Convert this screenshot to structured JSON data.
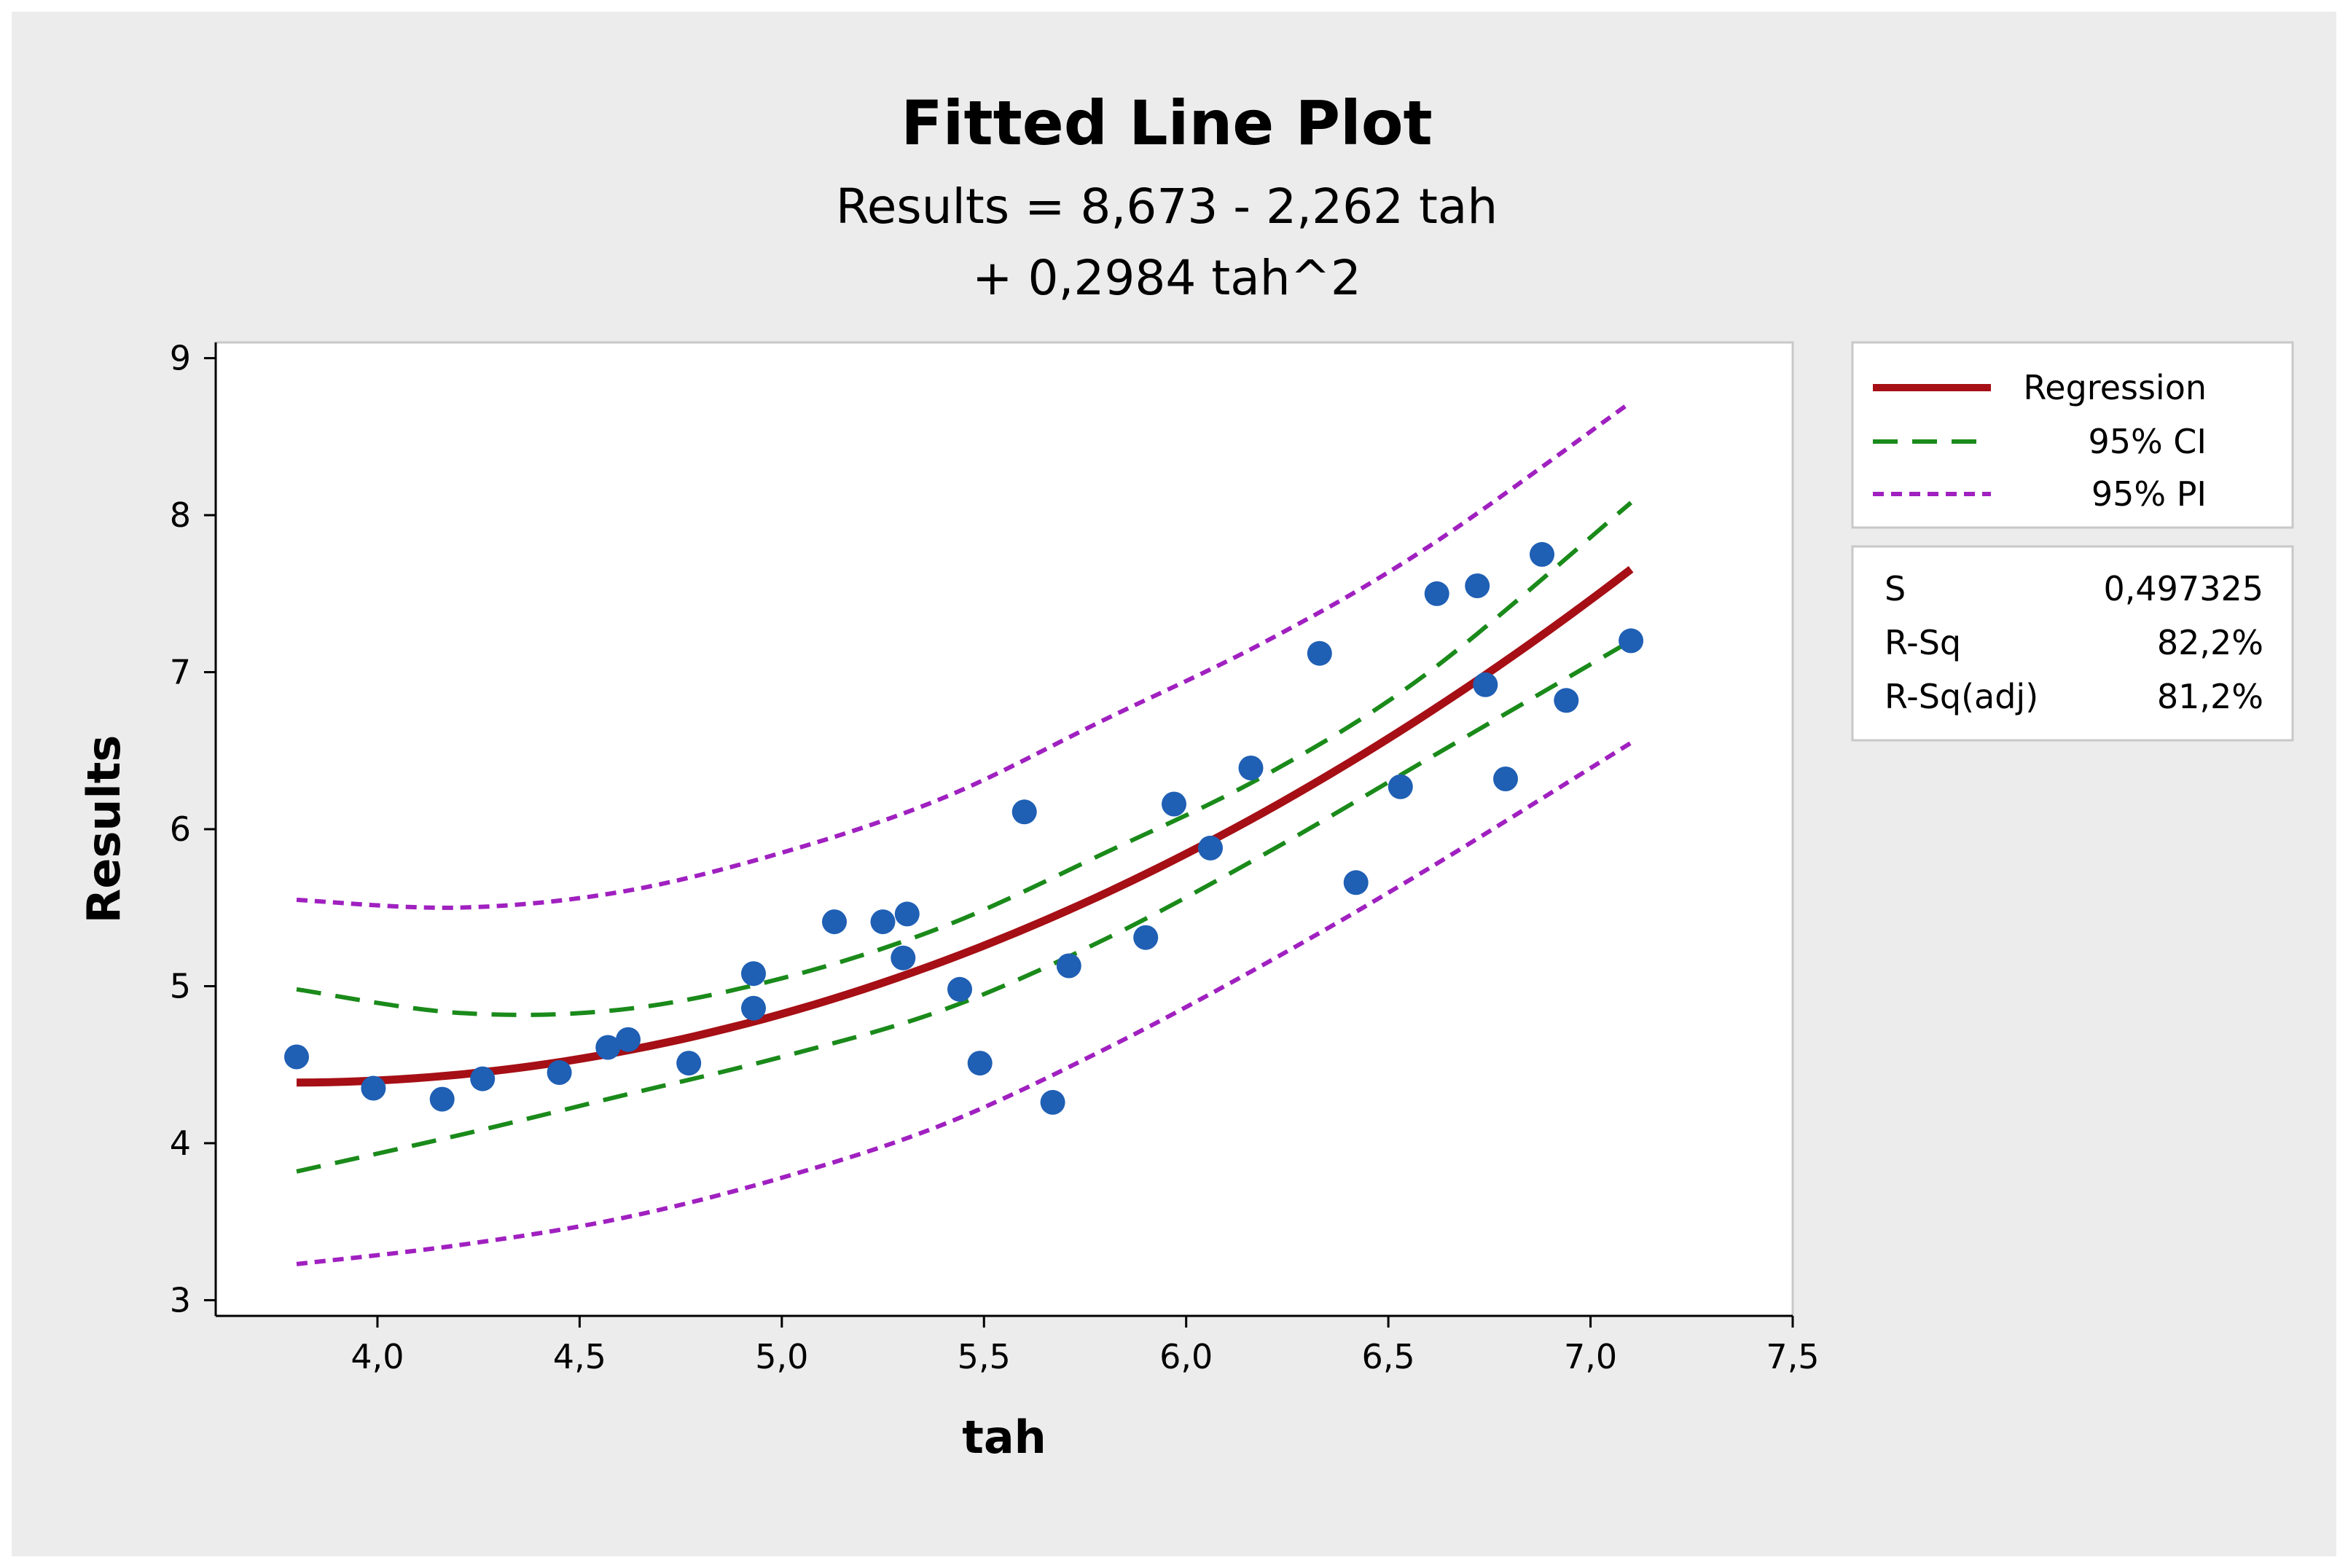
{
  "chart_data": {
    "type": "scatter",
    "title": "Fitted Line Plot",
    "subtitle_line1": "Results = 8,673 - 2,262 tah",
    "subtitle_line2": "+ 0,2984 tah^2",
    "xlabel": "tah",
    "ylabel": "Results",
    "xlim": [
      3.6,
      7.5
    ],
    "ylim": [
      2.9,
      9.1
    ],
    "x_ticks": [
      4.0,
      4.5,
      5.0,
      5.5,
      6.0,
      6.5,
      7.0,
      7.5
    ],
    "x_tick_labels": [
      "4,0",
      "4,5",
      "5,0",
      "5,5",
      "6,0",
      "6,5",
      "7,0",
      "7,5"
    ],
    "y_ticks": [
      3,
      4,
      5,
      6,
      7,
      8,
      9
    ],
    "y_tick_labels": [
      "3",
      "4",
      "5",
      "6",
      "7",
      "8",
      "9"
    ],
    "grid": false,
    "fit": {
      "intercept": 8.673,
      "linear": -2.262,
      "quadratic": 0.2984,
      "x_range": [
        3.8,
        7.1
      ]
    },
    "ci_band": {
      "lower": [
        [
          3.8,
          3.82
        ],
        [
          4.2,
          4.05
        ],
        [
          4.6,
          4.3
        ],
        [
          5.0,
          4.55
        ],
        [
          5.4,
          4.85
        ],
        [
          5.8,
          5.3
        ],
        [
          6.2,
          5.85
        ],
        [
          6.6,
          6.45
        ],
        [
          7.1,
          7.2
        ]
      ],
      "upper": [
        [
          3.8,
          4.98
        ],
        [
          4.2,
          4.83
        ],
        [
          4.6,
          4.85
        ],
        [
          5.0,
          5.05
        ],
        [
          5.4,
          5.38
        ],
        [
          5.8,
          5.85
        ],
        [
          6.2,
          6.35
        ],
        [
          6.6,
          7.0
        ],
        [
          7.1,
          8.08
        ]
      ]
    },
    "pi_band": {
      "lower": [
        [
          3.8,
          3.23
        ],
        [
          4.2,
          3.35
        ],
        [
          4.6,
          3.52
        ],
        [
          5.0,
          3.78
        ],
        [
          5.4,
          4.12
        ],
        [
          5.8,
          4.6
        ],
        [
          6.2,
          5.15
        ],
        [
          6.6,
          5.75
        ],
        [
          7.1,
          6.55
        ]
      ],
      "upper": [
        [
          3.8,
          5.55
        ],
        [
          4.2,
          5.5
        ],
        [
          4.6,
          5.6
        ],
        [
          5.0,
          5.85
        ],
        [
          5.4,
          6.2
        ],
        [
          5.8,
          6.7
        ],
        [
          6.2,
          7.2
        ],
        [
          6.6,
          7.8
        ],
        [
          7.1,
          8.72
        ]
      ]
    },
    "points": [
      [
        3.8,
        4.55
      ],
      [
        3.99,
        4.35
      ],
      [
        4.16,
        4.28
      ],
      [
        4.26,
        4.41
      ],
      [
        4.45,
        4.45
      ],
      [
        4.57,
        4.61
      ],
      [
        4.62,
        4.66
      ],
      [
        4.77,
        4.51
      ],
      [
        4.93,
        4.86
      ],
      [
        4.93,
        5.08
      ],
      [
        5.13,
        5.41
      ],
      [
        5.25,
        5.41
      ],
      [
        5.3,
        5.18
      ],
      [
        5.31,
        5.46
      ],
      [
        5.44,
        4.98
      ],
      [
        5.49,
        4.51
      ],
      [
        5.6,
        6.11
      ],
      [
        5.67,
        4.26
      ],
      [
        5.71,
        5.13
      ],
      [
        5.9,
        5.31
      ],
      [
        5.97,
        6.16
      ],
      [
        6.06,
        5.88
      ],
      [
        6.16,
        6.39
      ],
      [
        6.33,
        7.12
      ],
      [
        6.42,
        5.66
      ],
      [
        6.53,
        6.27
      ],
      [
        6.62,
        7.5
      ],
      [
        6.72,
        7.55
      ],
      [
        6.74,
        6.92
      ],
      [
        6.79,
        6.32
      ],
      [
        6.88,
        7.75
      ],
      [
        6.94,
        6.82
      ],
      [
        7.1,
        7.2
      ]
    ],
    "legend": {
      "position": "right",
      "items": [
        {
          "label": "Regression",
          "style": "solid",
          "color": "#a50f15"
        },
        {
          "label": "95% CI",
          "style": "dashed",
          "color": "#1a8a1a"
        },
        {
          "label": "95% PI",
          "style": "dotted",
          "color": "#a020c0"
        }
      ]
    },
    "stats": [
      {
        "label": "S",
        "value": "0,497325"
      },
      {
        "label": "R-Sq",
        "value": "82,2%"
      },
      {
        "label": "R-Sq(adj)",
        "value": "81,2%"
      }
    ],
    "colors": {
      "regression": "#a50f15",
      "ci": "#1a8a1a",
      "pi": "#a020c0",
      "points": "#1f5fb4"
    }
  }
}
